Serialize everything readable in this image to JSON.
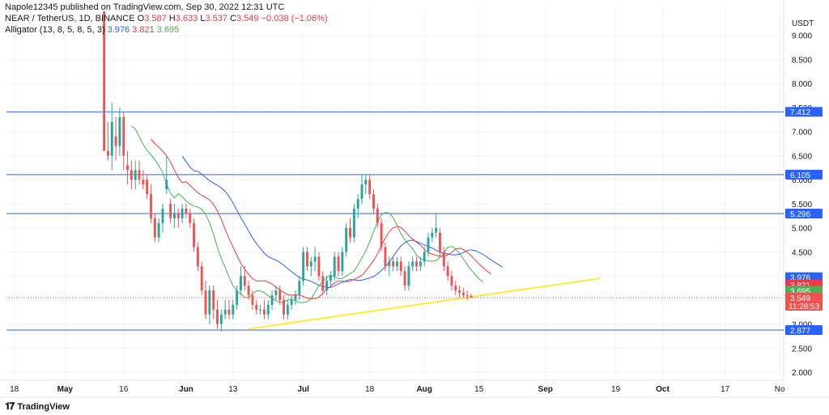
{
  "header": {
    "published": "Napole12345 published on TradingView.com, Sep 30, 2022 12:31 UTC",
    "symbol": "NEAR / TetherUS, 1D, BINANCE",
    "ohlc": {
      "o_label": "O",
      "o": "3.587",
      "h_label": "H",
      "h": "3.633",
      "l_label": "L",
      "l": "3.537",
      "c_label": "C",
      "c": "3.549",
      "change": "−0.038 (−1.06%)"
    },
    "indicator": {
      "name": "Alligator (13, 8, 5, 8, 5, 3)",
      "jaw": "3.976",
      "teeth": "3.821",
      "lips": "3.695"
    }
  },
  "currency": "USDT",
  "branding": {
    "logo_icon": "tradingview-logo-icon",
    "name": "TradingView"
  },
  "colors": {
    "up": "#26a69a",
    "down": "#ef5350",
    "jaw": "#2962ff",
    "teeth": "#f23645",
    "lips": "#4caf50",
    "hline": "#2962ff",
    "trend": "#ffeb3b",
    "grid": "#f0f3fa",
    "axis_text": "#131722"
  },
  "chart_data": {
    "type": "candlestick",
    "ylim": [
      1.8,
      9.5
    ],
    "y_ticks": [
      "2.000",
      "2.500",
      "3.000",
      "3.500",
      "4.000",
      "4.500",
      "5.000",
      "5.500",
      "6.000",
      "6.500",
      "7.000",
      "7.500",
      "8.000",
      "8.500",
      "9.000"
    ],
    "x_ticks": [
      {
        "label": "18",
        "day": 0
      },
      {
        "label": "May",
        "day": 13
      },
      {
        "label": "16",
        "day": 28
      },
      {
        "label": "Jun",
        "day": 44
      },
      {
        "label": "13",
        "day": 56
      },
      {
        "label": "Jul",
        "day": 74
      },
      {
        "label": "18",
        "day": 91
      },
      {
        "label": "Aug",
        "day": 105
      },
      {
        "label": "15",
        "day": 119
      },
      {
        "label": "Sep",
        "day": 136
      },
      {
        "label": "19",
        "day": 154
      },
      {
        "label": "Oct",
        "day": 166
      },
      {
        "label": "17",
        "day": 182
      },
      {
        "label": "No",
        "day": 196
      }
    ],
    "x_range_days": [
      -2,
      197
    ],
    "first_candle_day": 23,
    "horizontal_lines": [
      {
        "value": 7.412,
        "label": "7.412"
      },
      {
        "value": 6.105,
        "label": "6.105"
      },
      {
        "value": 5.296,
        "label": "5.296"
      },
      {
        "value": 2.877,
        "label": "2.877"
      }
    ],
    "trendline": {
      "from": {
        "day": 60,
        "value": 2.9
      },
      "to": {
        "day": 150,
        "value": 3.95
      }
    },
    "price_labels": [
      {
        "value": 3.976,
        "text": "3.976",
        "color": "#2962ff"
      },
      {
        "value": 3.821,
        "text": "3.821",
        "color": "#f23645"
      },
      {
        "value": 3.695,
        "text": "3.695",
        "color": "#4caf50"
      },
      {
        "value": 3.549,
        "text": "3.549",
        "sub": "11:28:53",
        "color": "#ef5350"
      }
    ],
    "candles": [
      [
        9.5,
        9.5,
        6.6,
        6.6
      ],
      [
        6.6,
        7.2,
        6.4,
        6.5
      ],
      [
        6.5,
        7.6,
        6.2,
        7.2
      ],
      [
        6.9,
        7.3,
        6.4,
        6.7
      ],
      [
        6.7,
        7.5,
        6.5,
        7.3
      ],
      [
        7.3,
        7.4,
        6.2,
        6.5
      ],
      [
        6.3,
        6.6,
        5.9,
        6.2
      ],
      [
        6.2,
        6.4,
        5.8,
        6.0
      ],
      [
        6.0,
        6.4,
        5.8,
        6.2
      ],
      [
        6.2,
        6.4,
        5.9,
        6.0
      ],
      [
        6.0,
        6.2,
        5.8,
        5.9
      ],
      [
        6.0,
        6.1,
        5.6,
        5.7
      ],
      [
        5.7,
        5.9,
        5.1,
        5.2
      ],
      [
        5.2,
        5.3,
        4.7,
        4.8
      ],
      [
        4.8,
        5.2,
        4.7,
        5.1
      ],
      [
        5.1,
        5.5,
        4.9,
        5.4
      ],
      [
        5.8,
        6.5,
        5.7,
        6.0
      ],
      [
        5.5,
        5.6,
        5.1,
        5.2
      ],
      [
        5.2,
        5.5,
        5.0,
        5.3
      ],
      [
        5.3,
        5.4,
        5.0,
        5.2
      ],
      [
        5.2,
        5.5,
        5.1,
        5.4
      ],
      [
        5.4,
        5.5,
        5.2,
        5.3
      ],
      [
        5.3,
        5.4,
        5.0,
        5.1
      ],
      [
        5.1,
        5.2,
        4.5,
        4.6
      ],
      [
        4.6,
        4.7,
        4.1,
        4.2
      ],
      [
        4.2,
        4.3,
        3.6,
        3.7
      ],
      [
        3.7,
        3.9,
        3.1,
        3.2
      ],
      [
        3.2,
        3.8,
        3.0,
        3.7
      ],
      [
        3.7,
        3.8,
        3.1,
        3.3
      ],
      [
        3.3,
        3.5,
        2.9,
        3.0
      ],
      [
        3.0,
        3.3,
        2.85,
        3.2
      ],
      [
        3.2,
        3.5,
        3.1,
        3.3
      ],
      [
        3.3,
        3.5,
        3.1,
        3.2
      ],
      [
        3.2,
        3.5,
        3.1,
        3.4
      ],
      [
        3.4,
        3.8,
        3.3,
        3.7
      ],
      [
        3.7,
        4.2,
        3.6,
        4.0
      ],
      [
        4.0,
        4.2,
        3.7,
        3.8
      ],
      [
        3.8,
        3.9,
        3.5,
        3.6
      ],
      [
        3.6,
        3.7,
        3.3,
        3.4
      ],
      [
        3.4,
        3.5,
        3.2,
        3.3
      ],
      [
        3.3,
        3.4,
        3.2,
        3.3
      ],
      [
        3.3,
        3.5,
        3.1,
        3.2
      ],
      [
        3.2,
        3.5,
        3.1,
        3.4
      ],
      [
        3.4,
        3.7,
        3.3,
        3.6
      ],
      [
        3.6,
        3.8,
        3.5,
        3.7
      ],
      [
        3.7,
        3.8,
        3.4,
        3.5
      ],
      [
        3.5,
        3.6,
        3.1,
        3.2
      ],
      [
        3.2,
        3.5,
        3.1,
        3.4
      ],
      [
        3.4,
        3.6,
        3.3,
        3.5
      ],
      [
        3.5,
        3.7,
        3.4,
        3.6
      ],
      [
        3.6,
        4.0,
        3.5,
        3.9
      ],
      [
        3.9,
        4.6,
        3.8,
        4.5
      ],
      [
        4.5,
        4.6,
        4.1,
        4.2
      ],
      [
        4.2,
        4.4,
        4.0,
        4.3
      ],
      [
        4.3,
        4.6,
        4.1,
        4.4
      ],
      [
        4.4,
        4.5,
        3.9,
        4.0
      ],
      [
        4.0,
        4.1,
        3.6,
        3.7
      ],
      [
        3.7,
        4.0,
        3.6,
        3.9
      ],
      [
        3.9,
        4.1,
        3.8,
        4.0
      ],
      [
        4.0,
        4.5,
        3.9,
        4.4
      ],
      [
        4.4,
        4.5,
        4.0,
        4.1
      ],
      [
        4.1,
        4.6,
        4.0,
        4.5
      ],
      [
        4.5,
        5.1,
        4.4,
        5.0
      ],
      [
        5.0,
        5.2,
        4.7,
        4.8
      ],
      [
        4.8,
        5.5,
        4.7,
        5.4
      ],
      [
        5.4,
        5.7,
        5.2,
        5.6
      ],
      [
        5.6,
        6.1,
        5.5,
        5.9
      ],
      [
        5.9,
        6.1,
        5.7,
        6.0
      ],
      [
        6.0,
        6.1,
        5.6,
        5.7
      ],
      [
        5.7,
        5.8,
        5.3,
        5.4
      ],
      [
        5.4,
        5.5,
        5.0,
        5.1
      ],
      [
        5.1,
        5.2,
        4.5,
        4.6
      ],
      [
        4.6,
        4.7,
        4.1,
        4.2
      ],
      [
        4.2,
        4.4,
        4.0,
        4.3
      ],
      [
        4.3,
        4.4,
        4.1,
        4.2
      ],
      [
        4.2,
        4.4,
        4.1,
        4.3
      ],
      [
        4.3,
        4.4,
        4.0,
        4.1
      ],
      [
        4.1,
        4.2,
        3.7,
        3.8
      ],
      [
        3.8,
        4.3,
        3.7,
        4.2
      ],
      [
        4.2,
        4.4,
        4.1,
        4.3
      ],
      [
        4.3,
        4.4,
        4.1,
        4.2
      ],
      [
        4.2,
        4.4,
        4.1,
        4.3
      ],
      [
        4.3,
        4.6,
        4.2,
        4.5
      ],
      [
        4.5,
        4.9,
        4.4,
        4.8
      ],
      [
        4.8,
        5.0,
        4.7,
        4.9
      ],
      [
        4.9,
        5.3,
        4.8,
        5.0
      ],
      [
        4.9,
        5.0,
        4.4,
        4.5
      ],
      [
        4.5,
        4.6,
        4.1,
        4.2
      ],
      [
        4.2,
        4.3,
        3.9,
        4.0
      ],
      [
        4.0,
        4.1,
        3.7,
        3.8
      ],
      [
        3.8,
        3.9,
        3.6,
        3.7
      ],
      [
        3.7,
        3.8,
        3.55,
        3.65
      ],
      [
        3.65,
        3.75,
        3.55,
        3.6
      ],
      [
        3.6,
        3.7,
        3.5,
        3.587
      ],
      [
        3.587,
        3.633,
        3.537,
        3.549
      ]
    ]
  }
}
